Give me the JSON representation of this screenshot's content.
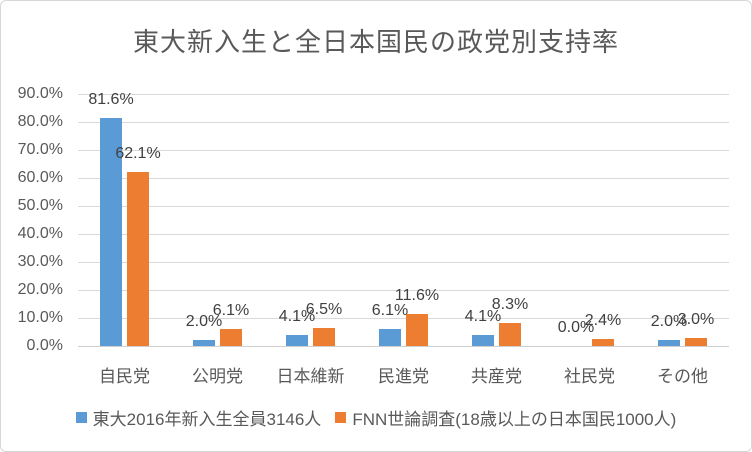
{
  "chart_data": {
    "type": "bar",
    "title": "東大新入生と全日本国民の政党別支持率",
    "categories": [
      "自民党",
      "公明党",
      "日本維新",
      "民進党",
      "共産党",
      "社民党",
      "その他"
    ],
    "series": [
      {
        "name": "東大2016年新入生全員3146人",
        "color": "#5B9BD5",
        "values": [
          81.6,
          2.0,
          4.1,
          6.1,
          4.1,
          0.0,
          2.0
        ],
        "labels": [
          "81.6%",
          "2.0%",
          "4.1%",
          "6.1%",
          "4.1%",
          "0.0%",
          "2.0%"
        ]
      },
      {
        "name": "FNN世論調査(18歳以上の日本国民1000人)",
        "color": "#ED7D31",
        "values": [
          62.1,
          6.1,
          6.5,
          11.6,
          8.3,
          2.4,
          3.0
        ],
        "labels": [
          "62.1%",
          "6.1%",
          "6.5%",
          "11.6%",
          "8.3%",
          "2.4%",
          "3.0%"
        ]
      }
    ],
    "ylim": [
      0,
      90
    ],
    "yticks": [
      "0.0%",
      "10.0%",
      "20.0%",
      "30.0%",
      "40.0%",
      "50.0%",
      "60.0%",
      "70.0%",
      "80.0%",
      "90.0%"
    ],
    "grid": true,
    "legend_position": "bottom",
    "colors": {
      "gridline": "#D9D9D9",
      "title_text": "#595959",
      "axis_text": "#595959",
      "data_label_text": "#404040"
    }
  }
}
